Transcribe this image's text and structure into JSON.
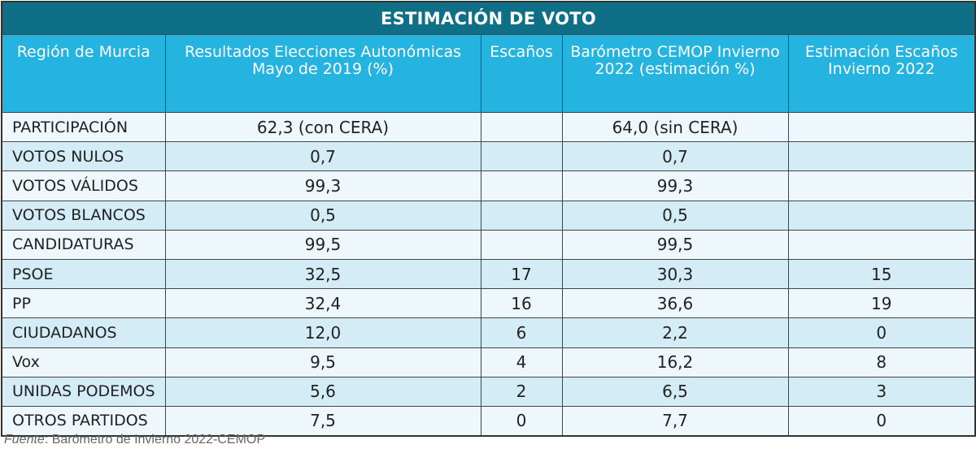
{
  "title": "ESTIMACIÓN DE VOTO",
  "headers": [
    "Región de Murcia",
    "Resultados Elecciones Autonómicas Mayo de 2019 (%)",
    "Escaños",
    "Barómetro CEMOP Invierno 2022 (estimación %)",
    "Estimación Escaños Invierno 2022"
  ],
  "rows": [
    [
      "PARTICIPACIÓN",
      "62,3 (con CERA)",
      "",
      "64,0 (sin CERA)",
      ""
    ],
    [
      "VOTOS NULOS",
      "0,7",
      "",
      "0,7",
      ""
    ],
    [
      "VOTOS VÁLIDOS",
      "99,3",
      "",
      "99,3",
      ""
    ],
    [
      "VOTOS BLANCOS",
      "0,5",
      "",
      "0,5",
      ""
    ],
    [
      "CANDIDATURAS",
      "99,5",
      "",
      "99,5",
      ""
    ],
    [
      "PSOE",
      "32,5",
      "17",
      "30,3",
      "15"
    ],
    [
      "PP",
      "32,4",
      "16",
      "36,6",
      "19"
    ],
    [
      "CIUDADANOS",
      "12,0",
      "6",
      "2,2",
      "0"
    ],
    [
      "Vox",
      "9,5",
      "4",
      "16,2",
      "8"
    ],
    [
      "UNIDAS PODEMOS",
      "5,6",
      "2",
      "6,5",
      "3"
    ],
    [
      "OTROS PARTIDOS",
      "7,5",
      "0",
      "7,7",
      "0"
    ]
  ],
  "footer": {
    "label": "Fuente",
    "text": ": Barómetro de Invierno 2022-CEMOP"
  },
  "colors": {
    "title_bg": "#0f6f87",
    "header_bg": "#25b3df",
    "row_light": "#eef7fb",
    "row_dark": "#d3ecf5"
  }
}
